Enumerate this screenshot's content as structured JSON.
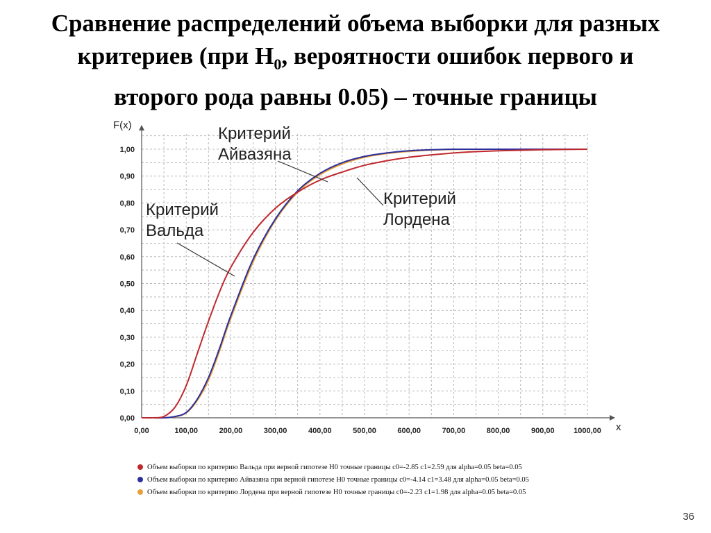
{
  "slide": {
    "title_line1": "Сравнение распределений объема выборки для разных",
    "title_line2_pre": "критериев (при H",
    "title_line2_sub": "0",
    "title_line2_post": ", вероятности ошибок первого и",
    "title_line3": "второго рода равны 0.05) – точные границы",
    "page_number": "36"
  },
  "annotations": {
    "aivazyan_line1": "Критерий",
    "aivazyan_line2": "Айвазяна",
    "wald_line1": "Критерий",
    "wald_line2": "Вальда",
    "lorden_line1": "Критерий",
    "lorden_line2": "Лордена"
  },
  "chart_data": {
    "type": "line",
    "ylabel": "F(x)",
    "xlabel": "x",
    "xlim": [
      0,
      1000
    ],
    "ylim": [
      0,
      1
    ],
    "grid": true,
    "x_ticks": [
      "0,00",
      "100,00",
      "200,00",
      "300,00",
      "400,00",
      "500,00",
      "600,00",
      "700,00",
      "800,00",
      "900,00",
      "1000,00"
    ],
    "y_ticks": [
      "0,00",
      "0,10",
      "0,20",
      "0,30",
      "0,40",
      "0,50",
      "0,60",
      "0,70",
      "0,80",
      "0,90",
      "1,00"
    ],
    "x": [
      0,
      25,
      50,
      75,
      100,
      125,
      150,
      175,
      200,
      250,
      300,
      350,
      400,
      450,
      500,
      550,
      600,
      650,
      700,
      750,
      800,
      850,
      900,
      950,
      1000
    ],
    "series": [
      {
        "name": "Объем выборки по критерию Вальда при верной гипотезе H0  точные границы  c0=-2.85 c1=2.59 для  alpha=0.05 beta=0.05",
        "color": "#c0282d",
        "values": [
          0.0,
          0.0,
          0.005,
          0.04,
          0.12,
          0.24,
          0.36,
          0.47,
          0.56,
          0.69,
          0.78,
          0.84,
          0.885,
          0.915,
          0.94,
          0.957,
          0.97,
          0.979,
          0.986,
          0.991,
          0.994,
          0.996,
          0.998,
          0.999,
          1.0
        ]
      },
      {
        "name": "Объем выборки по критерию Айвазяна при верной гипотезе H0  точные границы  c0=-4.14 c1=3.48 для  alpha=0.05 beta=0.05",
        "color": "#2b2f9c",
        "values": [
          0.0,
          0.0,
          0.0,
          0.005,
          0.02,
          0.07,
          0.15,
          0.26,
          0.38,
          0.59,
          0.74,
          0.845,
          0.91,
          0.95,
          0.973,
          0.986,
          0.994,
          0.998,
          1.0,
          1.0,
          1.0,
          1.0,
          1.0,
          1.0,
          1.0
        ]
      },
      {
        "name": "Объем выборки по критерию Лордена при верной гипотезе H0  точные границы  c0=-2.23 c1=1.98 для  alpha=0.05 beta=0.05",
        "color": "#e8a037",
        "values": [
          0.0,
          0.0,
          0.0,
          0.004,
          0.018,
          0.065,
          0.14,
          0.25,
          0.37,
          0.58,
          0.735,
          0.84,
          0.905,
          0.945,
          0.97,
          0.984,
          0.992,
          0.997,
          0.999,
          1.0,
          1.0,
          1.0,
          1.0,
          1.0,
          1.0
        ]
      }
    ]
  }
}
